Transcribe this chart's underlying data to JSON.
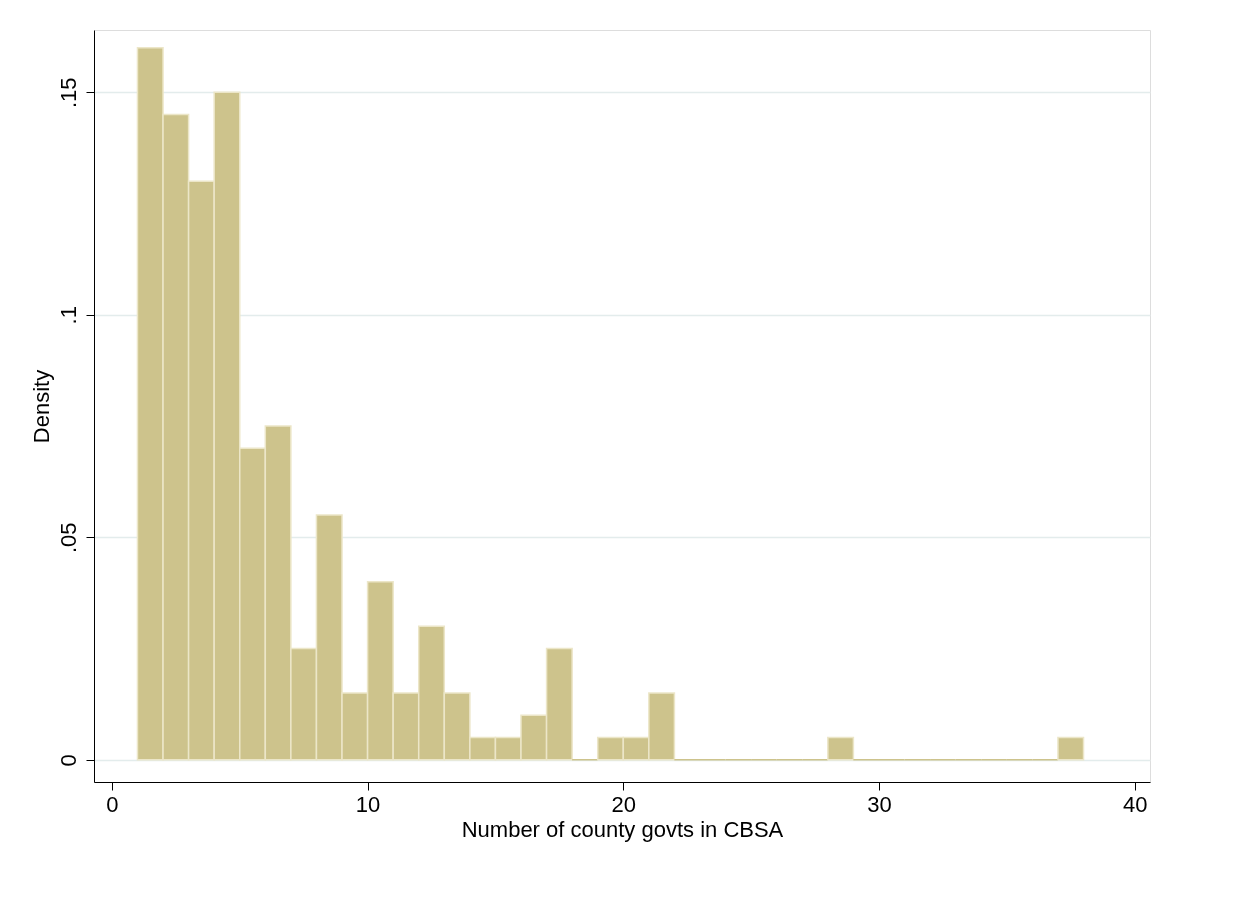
{
  "chart_data": {
    "type": "histogram",
    "xlabel": "Number of county govts in CBSA",
    "ylabel": "Density",
    "color": "#cdc38c",
    "bins": [
      1,
      2,
      3,
      4,
      5,
      6,
      7,
      8,
      9,
      10,
      11,
      12,
      13,
      14,
      15,
      16,
      17,
      18,
      19,
      20,
      21,
      22,
      23,
      24,
      25,
      26,
      27,
      28,
      29,
      30,
      31,
      32,
      33,
      34,
      35,
      36,
      37,
      38
    ],
    "values": [
      0.16,
      0.145,
      0.13,
      0.15,
      0.07,
      0.075,
      0.025,
      0.055,
      0.015,
      0.04,
      0.015,
      0.03,
      0.015,
      0.005,
      0.005,
      0.01,
      0.025,
      0,
      0.005,
      0.005,
      0.015,
      0,
      0,
      0,
      0,
      0,
      0,
      0.005,
      0,
      0,
      0,
      0,
      0,
      0,
      0,
      0,
      0.005
    ],
    "xlim": [
      -0.7,
      40.6
    ],
    "xticks": [
      0,
      10,
      20,
      30,
      40
    ],
    "ylim": [
      -0.005,
      0.164
    ],
    "yticks": [
      {
        "value": 0,
        "label": "0"
      },
      {
        "value": 0.05,
        "label": ".05"
      },
      {
        "value": 0.1,
        "label": ".1"
      },
      {
        "value": 0.15,
        "label": ".15"
      }
    ],
    "grid": "y"
  }
}
